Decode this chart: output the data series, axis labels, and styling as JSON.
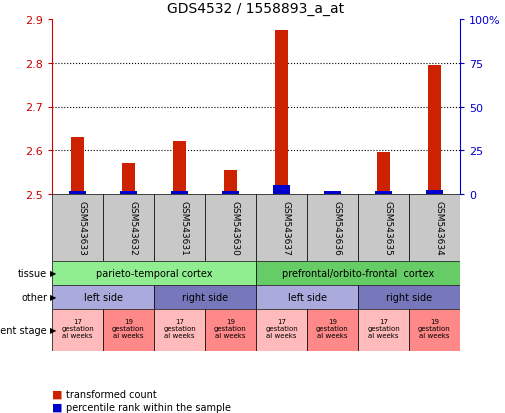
{
  "title": "GDS4532 / 1558893_a_at",
  "samples": [
    "GSM543633",
    "GSM543632",
    "GSM543631",
    "GSM543630",
    "GSM543637",
    "GSM543636",
    "GSM543635",
    "GSM543634"
  ],
  "red_values": [
    2.63,
    2.57,
    2.62,
    2.555,
    2.875,
    2.505,
    2.595,
    2.795
  ],
  "blue_values": [
    1.5,
    1.5,
    1.5,
    1.5,
    5.0,
    1.5,
    1.5,
    2.5
  ],
  "ylim_left": [
    2.5,
    2.9
  ],
  "ylim_right": [
    0,
    100
  ],
  "yticks_left": [
    2.5,
    2.6,
    2.7,
    2.8,
    2.9
  ],
  "yticks_right": [
    0,
    25,
    50,
    75,
    100
  ],
  "ytick_labels_right": [
    "0",
    "25",
    "50",
    "75",
    "100%"
  ],
  "tissue_groups": [
    {
      "label": "parieto-temporal cortex",
      "start": 0,
      "end": 4,
      "color": "#90EE90"
    },
    {
      "label": "prefrontal/orbito-frontal  cortex",
      "start": 4,
      "end": 8,
      "color": "#66CC66"
    }
  ],
  "other_groups": [
    {
      "label": "left side",
      "start": 0,
      "end": 2,
      "color": "#AAAADD"
    },
    {
      "label": "right side",
      "start": 2,
      "end": 4,
      "color": "#7777BB"
    },
    {
      "label": "left side",
      "start": 4,
      "end": 6,
      "color": "#AAAADD"
    },
    {
      "label": "right side",
      "start": 6,
      "end": 8,
      "color": "#7777BB"
    }
  ],
  "dev_groups": [
    {
      "label": "17\ngestation\nal weeks",
      "start": 0,
      "end": 1,
      "color": "#FFBBBB"
    },
    {
      "label": "19\ngestation\nal weeks",
      "start": 1,
      "end": 2,
      "color": "#FF8888"
    },
    {
      "label": "17\ngestation\nal weeks",
      "start": 2,
      "end": 3,
      "color": "#FFBBBB"
    },
    {
      "label": "19\ngestation\nal weeks",
      "start": 3,
      "end": 4,
      "color": "#FF8888"
    },
    {
      "label": "17\ngestation\nal weeks",
      "start": 4,
      "end": 5,
      "color": "#FFBBBB"
    },
    {
      "label": "19\ngestation\nal weeks",
      "start": 5,
      "end": 6,
      "color": "#FF8888"
    },
    {
      "label": "17\ngestation\nal weeks",
      "start": 6,
      "end": 7,
      "color": "#FFBBBB"
    },
    {
      "label": "19\ngestation\nal weeks",
      "start": 7,
      "end": 8,
      "color": "#FF8888"
    }
  ],
  "bar_color": "#CC2200",
  "blue_bar_color": "#0000CC",
  "background_color": "#ffffff",
  "sample_bg_color": "#C8C8C8",
  "grid_color": "#000000",
  "left_axis_color": "#CC0000",
  "right_axis_color": "#0000CC",
  "legend_red": "transformed count",
  "legend_blue": "percentile rank within the sample"
}
